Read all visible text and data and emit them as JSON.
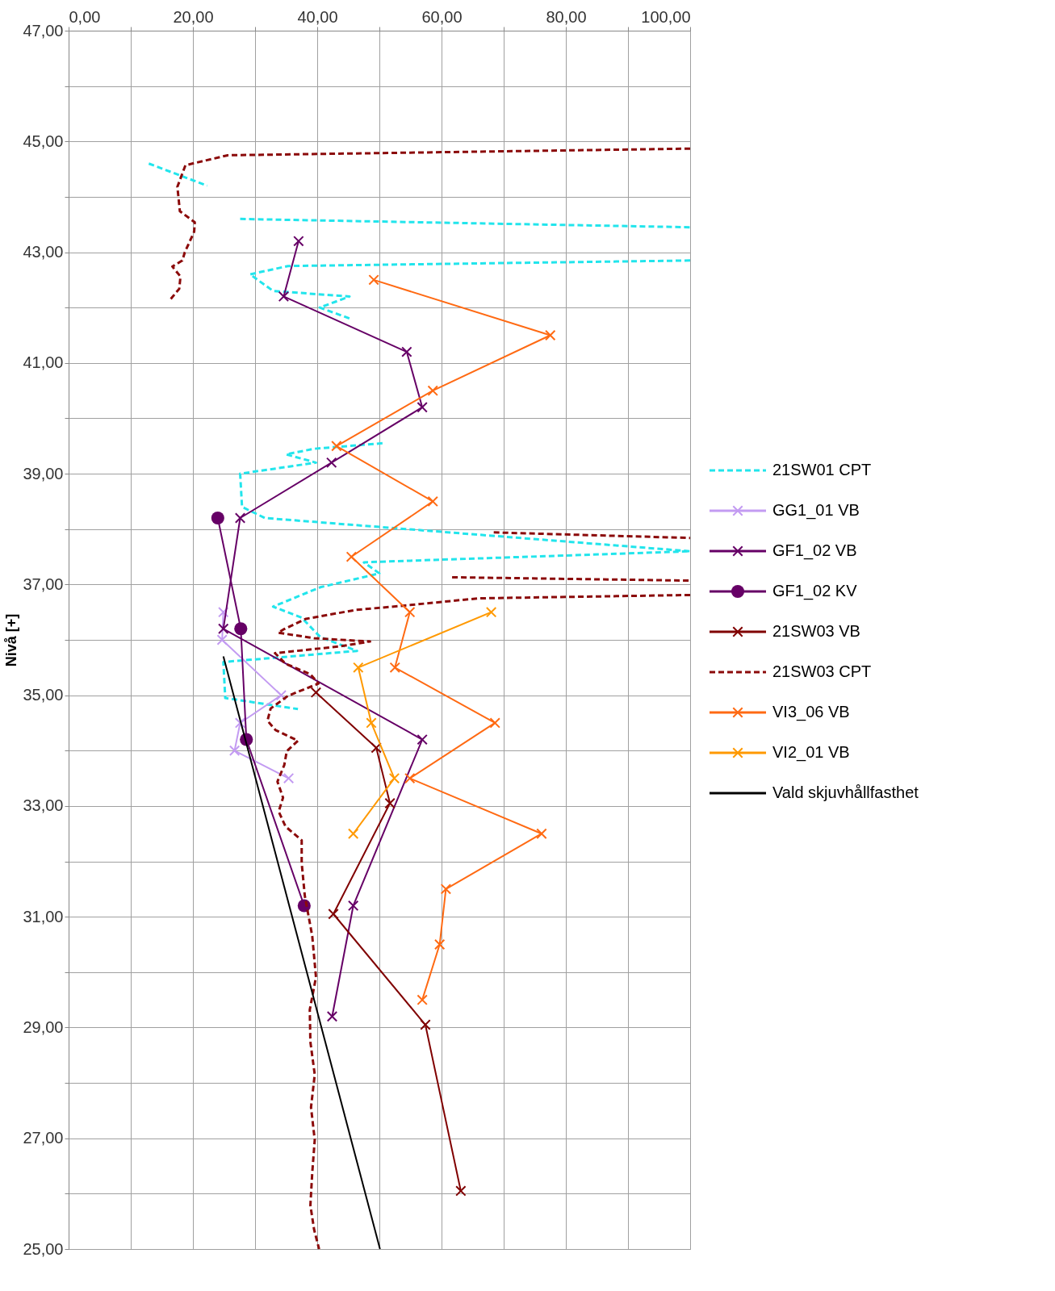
{
  "chart_data": {
    "type": "line",
    "ylabel": "Nivå [+]",
    "xlim": [
      0,
      100
    ],
    "xticks": [
      {
        "value": 0,
        "label": "0,00"
      },
      {
        "value": 10,
        "label": null
      },
      {
        "value": 20,
        "label": "20,00"
      },
      {
        "value": 30,
        "label": null
      },
      {
        "value": 40,
        "label": "40,00"
      },
      {
        "value": 50,
        "label": null
      },
      {
        "value": 60,
        "label": "60,00"
      },
      {
        "value": 70,
        "label": null
      },
      {
        "value": 80,
        "label": "80,00"
      },
      {
        "value": 90,
        "label": null
      },
      {
        "value": 100,
        "label": "100,00"
      }
    ],
    "ylim": [
      25,
      47
    ],
    "yticks": [
      {
        "value": 25,
        "label": "25,00"
      },
      {
        "value": 26,
        "label": null
      },
      {
        "value": 27,
        "label": "27,00"
      },
      {
        "value": 28,
        "label": null
      },
      {
        "value": 29,
        "label": "29,00"
      },
      {
        "value": 30,
        "label": null
      },
      {
        "value": 31,
        "label": "31,00"
      },
      {
        "value": 32,
        "label": null
      },
      {
        "value": 33,
        "label": "33,00"
      },
      {
        "value": 34,
        "label": null
      },
      {
        "value": 35,
        "label": "35,00"
      },
      {
        "value": 36,
        "label": null
      },
      {
        "value": 37,
        "label": "37,00"
      },
      {
        "value": 38,
        "label": null
      },
      {
        "value": 39,
        "label": "39,00"
      },
      {
        "value": 40,
        "label": null
      },
      {
        "value": 41,
        "label": "41,00"
      },
      {
        "value": 42,
        "label": null
      },
      {
        "value": 43,
        "label": "43,00"
      },
      {
        "value": 44,
        "label": null
      },
      {
        "value": 45,
        "label": "45,00"
      },
      {
        "value": 46,
        "label": null
      },
      {
        "value": 47,
        "label": "47,00"
      }
    ],
    "grid": true,
    "legend": "right",
    "series": [
      {
        "name": "21SW01 CPT",
        "color": "#22e5ec",
        "line_style": "dashed",
        "marker": "none",
        "x": [
          12.9,
          22.3,
          null,
          27.6,
          100,
          null,
          100,
          35.3,
          29.2,
          32.9,
          45.2,
          40.4,
          45.3,
          null,
          50.5,
          39.5,
          35.0,
          39.8,
          27.6,
          27.9,
          31.6,
          100,
          47.5,
          50.0,
          40.5,
          32.9,
          37.5,
          40.5,
          46.4,
          24.9,
          25.2,
          36.9
        ],
        "values": [
          44.6,
          44.2,
          null,
          43.6,
          43.45,
          null,
          42.85,
          42.75,
          42.6,
          42.3,
          42.2,
          42.0,
          41.8,
          null,
          39.55,
          39.45,
          39.35,
          39.2,
          39.0,
          38.4,
          38.2,
          37.6,
          37.4,
          37.2,
          36.95,
          36.6,
          36.4,
          36.05,
          35.8,
          35.6,
          34.95,
          34.75
        ]
      },
      {
        "name": "GG1_01 VB",
        "color": "#c39bf2",
        "line_style": "solid",
        "marker": "cross",
        "x": [
          24.9,
          24.7,
          34.2,
          27.6,
          26.7,
          35.4
        ],
        "values": [
          36.5,
          36.0,
          35.0,
          34.5,
          34.0,
          33.5
        ]
      },
      {
        "name": "GF1_02 VB",
        "color": "#660066",
        "line_style": "solid",
        "marker": "cross",
        "x": [
          37.0,
          34.6,
          54.4,
          56.9,
          42.3,
          27.6,
          24.9,
          56.9,
          45.8,
          42.4
        ],
        "values": [
          43.2,
          42.2,
          41.2,
          40.2,
          39.2,
          38.2,
          36.2,
          34.2,
          31.2,
          29.2
        ]
      },
      {
        "name": "GF1_02 KV",
        "color": "#660066",
        "line_style": "solid",
        "marker": "circle",
        "x": [
          24.0,
          27.7,
          28.6,
          37.9
        ],
        "values": [
          38.2,
          36.2,
          34.2,
          31.2
        ]
      },
      {
        "name": "21SW03 VB",
        "color": "#800000",
        "line_style": "solid",
        "marker": "cross",
        "x": [
          39.8,
          49.5,
          51.7,
          42.6,
          57.4,
          63.1
        ],
        "values": [
          35.05,
          34.05,
          33.05,
          31.05,
          29.05,
          26.05
        ]
      },
      {
        "name": "21SW03 CPT",
        "color": "#8b0a0a",
        "line_style": "dashed",
        "marker": "none",
        "x": [
          100,
          25.6,
          18.8,
          17.5,
          17.9,
          20.3,
          20.2,
          18.7,
          18.3,
          16.7,
          18.0,
          17.8,
          16.4,
          null,
          68.4,
          100,
          null,
          61.7,
          100,
          null,
          100,
          66.0,
          54.1,
          46.2,
          38.2,
          34.6,
          33.7,
          39.5,
          48.5,
          43.5,
          33.2,
          34.9,
          38.9,
          40.2,
          35.3,
          32.5,
          32.0,
          33.3,
          36.9,
          35.1,
          34.7,
          33.6,
          34.5,
          33.8,
          34.9,
          37.5,
          37.5,
          38.0,
          39.2,
          39.8,
          38.8,
          38.9,
          39.6,
          39.0,
          39.6,
          39.2,
          38.9,
          39.5,
          40.3
        ],
        "values": [
          44.87,
          44.75,
          44.57,
          44.18,
          43.74,
          43.54,
          43.37,
          43.0,
          42.85,
          42.74,
          42.56,
          42.34,
          42.15,
          null,
          37.94,
          37.84,
          null,
          37.13,
          37.07,
          null,
          36.81,
          36.75,
          36.62,
          36.54,
          36.38,
          36.19,
          36.13,
          36.03,
          35.97,
          35.88,
          35.76,
          35.57,
          35.38,
          35.21,
          34.99,
          34.76,
          34.54,
          34.37,
          34.18,
          33.99,
          33.74,
          33.44,
          33.15,
          32.9,
          32.63,
          32.38,
          31.97,
          31.38,
          30.65,
          29.91,
          29.32,
          28.74,
          28.15,
          27.56,
          26.97,
          26.38,
          25.79,
          25.35,
          25.0
        ]
      },
      {
        "name": "VI3_06 VB",
        "color": "#ff6a13",
        "line_style": "solid",
        "marker": "cross",
        "x": [
          49.1,
          77.5,
          58.6,
          43.1,
          58.6,
          45.5,
          54.9,
          52.5,
          68.6,
          54.9,
          76.1,
          60.7,
          59.7,
          56.9
        ],
        "values": [
          42.5,
          41.5,
          40.5,
          39.5,
          38.5,
          37.5,
          36.5,
          35.5,
          34.5,
          33.5,
          32.5,
          31.5,
          30.5,
          29.5
        ]
      },
      {
        "name": "VI2_01 VB",
        "color": "#ff9900",
        "line_style": "solid",
        "marker": "cross",
        "x": [
          68.0,
          46.6,
          48.7,
          52.4,
          45.8
        ],
        "values": [
          36.5,
          35.5,
          34.5,
          33.5,
          32.5
        ]
      },
      {
        "name": "Vald skjuvhållfasthet",
        "color": "#000000",
        "line_style": "solid",
        "marker": "none",
        "x": [
          24.9,
          50.1
        ],
        "values": [
          35.7,
          25.0
        ]
      }
    ]
  }
}
